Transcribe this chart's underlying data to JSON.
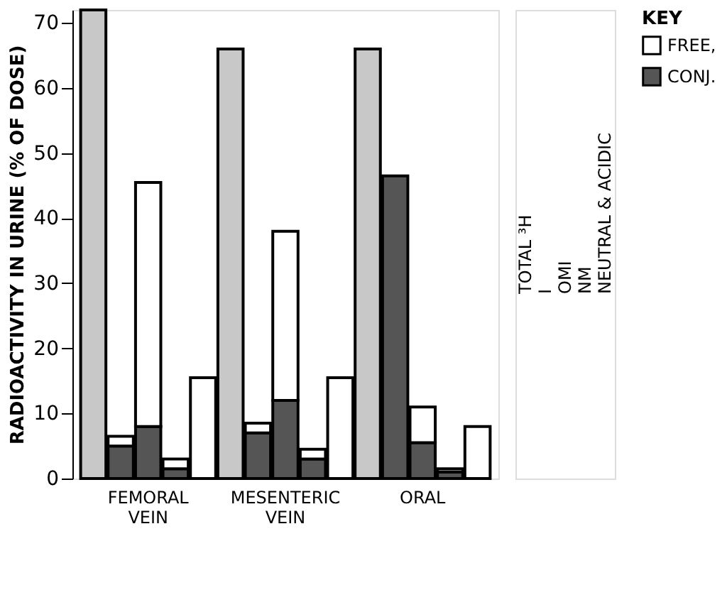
{
  "chart_data": {
    "type": "bar",
    "stacked": true,
    "categories": [
      null,
      null,
      "FEMORAL VEIN",
      null,
      null,
      null,
      null,
      "MESENTERIC VEIN",
      null,
      null,
      null,
      null,
      "ORAL",
      null,
      null
    ],
    "ylabel": "RADIOACTIVITY IN URINE (% OF DOSE)",
    "ylim": [
      0,
      72
    ],
    "yticks": [
      0,
      10,
      20,
      30,
      40,
      50,
      60,
      70
    ],
    "legend_title": "KEY",
    "legend": "right",
    "annotations": [
      "TOTAL ³H",
      "I",
      "OMI",
      "NM",
      "NEUTRAL & ACIDIC"
    ],
    "series": [
      {
        "color": "#c8c8c8",
        "values": [
          72,
          null,
          null,
          null,
          null,
          66,
          null,
          null,
          null,
          null,
          66,
          null,
          null,
          null,
          null
        ]
      },
      {
        "name": "CONJ.",
        "color": "#555555",
        "values": [
          null,
          5,
          8,
          1.5,
          null,
          null,
          7,
          12,
          3,
          null,
          null,
          46.5,
          5.5,
          1,
          null
        ]
      },
      {
        "name": "FREE,",
        "color": "#ffffff",
        "values": [
          null,
          1.5,
          37.5,
          1.5,
          15.5,
          null,
          1.5,
          26,
          1.5,
          15.5,
          null,
          null,
          5.5,
          0.5,
          8
        ]
      }
    ]
  }
}
